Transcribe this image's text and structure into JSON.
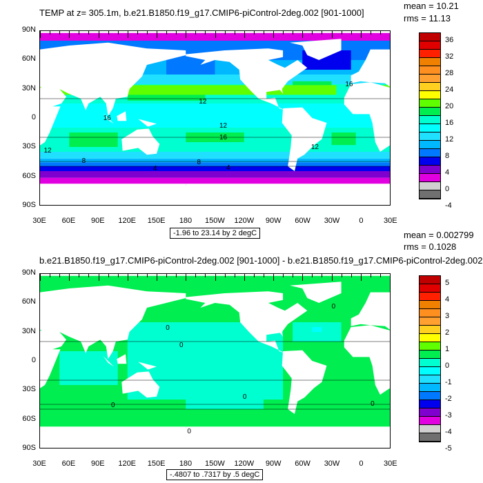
{
  "colors": [
    "#c00000",
    "#e00000",
    "#ff2000",
    "#f08000",
    "#ff9020",
    "#ffa030",
    "#ffd020",
    "#ffff00",
    "#60ff00",
    "#00ee50",
    "#00ffd0",
    "#00ffff",
    "#20e0ff",
    "#00b8ff",
    "#0078ff",
    "#0000ee",
    "#8000d0",
    "#e000e0",
    "#d0d0d0",
    "#707070"
  ],
  "lat_labels": [
    "90N",
    "60N",
    "30N",
    "0",
    "30S",
    "60S",
    "90S"
  ],
  "lon_labels": [
    "30E",
    "60E",
    "90E",
    "120E",
    "150E",
    "180",
    "150W",
    "120W",
    "90W",
    "60W",
    "30W",
    "0",
    "30E"
  ],
  "plot1": {
    "title": "TEMP at z= 305.1m, b.e21.B1850.f19_g17.CMIP6-piControl-2deg.002 [901-1000]",
    "mean": "mean = 10.21",
    "rms": "rms = 11.13",
    "range": "-1.96 to 23.14 by 2 degC",
    "cbar_labels": [
      "36",
      "32",
      "28",
      "24",
      "20",
      "16",
      "12",
      "8",
      "4",
      "0",
      "-4"
    ],
    "contour_labels": [
      {
        "t": "12",
        "lon": -165,
        "lat": 17
      },
      {
        "t": "12",
        "lon": -144,
        "lat": -8
      },
      {
        "t": "16",
        "lon": -144,
        "lat": -20
      },
      {
        "t": "16",
        "lon": 97,
        "lat": 0
      },
      {
        "t": "12",
        "lon": 36,
        "lat": -33
      },
      {
        "t": "8",
        "lon": 75,
        "lat": -44
      },
      {
        "t": "8",
        "lon": -167,
        "lat": -45
      },
      {
        "t": "4",
        "lon": 148,
        "lat": -52
      },
      {
        "t": "4",
        "lon": -137,
        "lat": -51
      },
      {
        "t": "16",
        "lon": -15,
        "lat": 35
      },
      {
        "t": "12",
        "lon": -50,
        "lat": -30
      }
    ]
  },
  "plot2": {
    "title": "b.e21.B1850.f19_g17.CMIP6-piControl-2deg.002 [901-1000] - b.e21.B1850.f19_g17.CMIP6-piControl-2deg.002",
    "mean": "mean = 0.002799",
    "rms": "rms = 0.1028",
    "range": "-.4807 to .7317 by .5 degC",
    "cbar_labels": [
      "5",
      "4",
      "3",
      "2",
      "1",
      "0",
      "-1",
      "-2",
      "-3",
      "-4",
      "-5"
    ],
    "contour_labels": [
      {
        "t": "0",
        "lon": 161,
        "lat": 34
      },
      {
        "t": "0",
        "lon": 175,
        "lat": 16
      },
      {
        "t": "0",
        "lon": 105,
        "lat": -45
      },
      {
        "t": "0",
        "lon": -120,
        "lat": -37
      },
      {
        "t": "0",
        "lon": -177,
        "lat": -72
      },
      {
        "t": "0",
        "lon": 11,
        "lat": -44
      },
      {
        "t": "0",
        "lon": -29,
        "lat": 56
      }
    ]
  }
}
